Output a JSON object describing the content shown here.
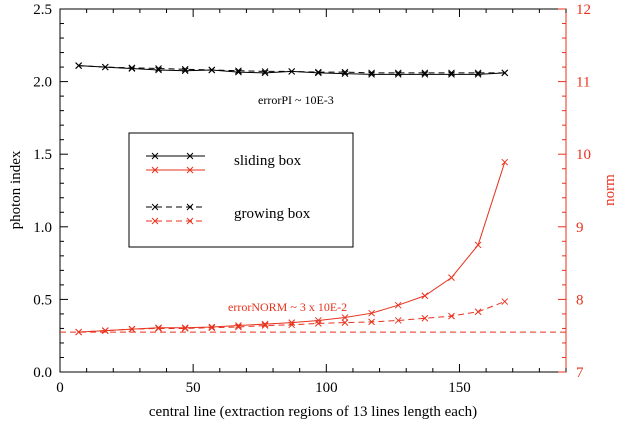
{
  "chart_data": {
    "type": "line",
    "xlabel": "central line (extraction regions of 13 lines length each)",
    "ylabel": "photon index",
    "y2label": "norm",
    "xlim": [
      0,
      190
    ],
    "ylim": [
      0,
      2.5
    ],
    "y2lim": [
      7,
      12
    ],
    "xticks": [
      0,
      50,
      100,
      150
    ],
    "yticks": [
      "0.0",
      "0.5",
      "1.0",
      "1.5",
      "2.0",
      "2.5"
    ],
    "y2ticks": [
      "7",
      "8",
      "9",
      "10",
      "11",
      "12"
    ],
    "colors": {
      "black": "#000000",
      "red": "#e8321e"
    },
    "annotations": {
      "error_pi": "errorPI ~ 10E-3",
      "error_norm": "errorNORM ~ 3 x 10E-2"
    },
    "legend": {
      "placement": "center-left",
      "entries": [
        {
          "label": "sliding box",
          "style": "solid"
        },
        {
          "label": "growing box",
          "style": "dashed"
        }
      ]
    },
    "reference_line": {
      "axis": "y2",
      "value": 7.55,
      "style": "dashed",
      "color": "red"
    },
    "series": [
      {
        "axis": "y",
        "style": "solid",
        "color": "black",
        "marker": "x",
        "x": [
          7,
          17,
          27,
          37,
          47,
          57,
          67,
          77,
          87,
          97,
          107,
          117,
          127,
          137,
          147,
          157,
          167
        ],
        "values": [
          2.11,
          2.1,
          2.09,
          2.08,
          2.075,
          2.08,
          2.065,
          2.06,
          2.07,
          2.06,
          2.055,
          2.05,
          2.05,
          2.05,
          2.05,
          2.05,
          2.06
        ]
      },
      {
        "axis": "y",
        "style": "dashed",
        "color": "black",
        "marker": "x",
        "x": [
          7,
          17,
          27,
          37,
          47,
          57,
          67,
          77,
          87,
          97,
          107,
          117,
          127,
          137,
          147,
          157,
          167
        ],
        "values": [
          2.11,
          2.1,
          2.095,
          2.09,
          2.085,
          2.08,
          2.075,
          2.07,
          2.07,
          2.065,
          2.065,
          2.06,
          2.06,
          2.06,
          2.06,
          2.06,
          2.06
        ]
      },
      {
        "axis": "y2",
        "style": "solid",
        "color": "red",
        "marker": "x",
        "x": [
          7,
          17,
          27,
          37,
          47,
          57,
          67,
          77,
          87,
          97,
          107,
          117,
          127,
          137,
          147,
          157,
          167
        ],
        "values": [
          7.55,
          7.57,
          7.59,
          7.61,
          7.61,
          7.62,
          7.64,
          7.66,
          7.68,
          7.71,
          7.75,
          7.81,
          7.92,
          8.05,
          8.3,
          8.75,
          9.89
        ]
      },
      {
        "axis": "y2",
        "style": "dashed",
        "color": "red",
        "marker": "x",
        "x": [
          7,
          17,
          27,
          37,
          47,
          57,
          67,
          77,
          87,
          97,
          107,
          117,
          127,
          137,
          147,
          157,
          167
        ],
        "values": [
          7.55,
          7.57,
          7.59,
          7.6,
          7.6,
          7.61,
          7.62,
          7.64,
          7.65,
          7.67,
          7.68,
          7.69,
          7.71,
          7.74,
          7.77,
          7.83,
          7.97
        ]
      }
    ]
  }
}
